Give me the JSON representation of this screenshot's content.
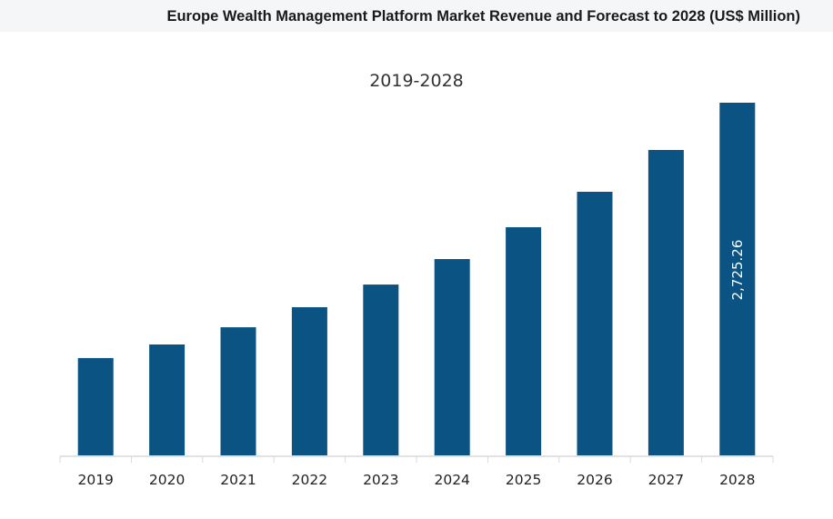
{
  "header": {
    "title": "Europe Wealth Management Platform Market Revenue and Forecast to 2028 (US$ Million)"
  },
  "chart_data": {
    "type": "bar",
    "title": "Europe Wealth Management Platform Market Revenue and Forecast to 2028 (US$ Million)",
    "subtitle": "2019-2028",
    "categories": [
      "2019",
      "2020",
      "2021",
      "2022",
      "2023",
      "2024",
      "2025",
      "2026",
      "2027",
      "2028"
    ],
    "values": [
      752,
      857,
      990,
      1145,
      1320,
      1517,
      1763,
      2037,
      2360,
      2725.26
    ],
    "data_labels": {
      "2028": "2,725.26"
    },
    "xlabel": "",
    "ylabel": "",
    "ylim": [
      0,
      2725.26
    ],
    "grid": false,
    "bar_color": "#0a5383"
  }
}
